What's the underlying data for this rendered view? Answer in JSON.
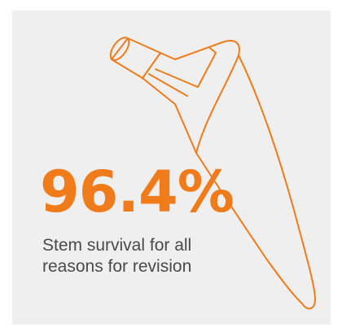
{
  "infographic": {
    "stat_value": "96.4%",
    "caption_line1": "Stem survival for all",
    "caption_line2": "reasons for revision"
  },
  "colors": {
    "accent": "#f07b1a",
    "card_background": "#efefef",
    "caption_text": "#4a4a4a"
  },
  "icons": {
    "illustration": "hip-stem-implant-icon"
  }
}
